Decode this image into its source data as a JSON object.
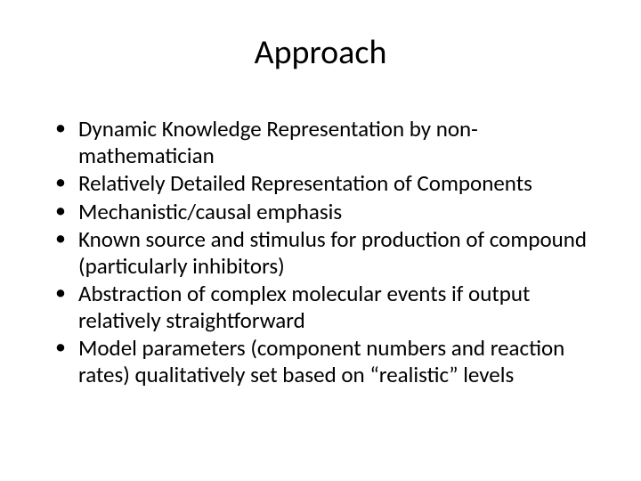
{
  "slide": {
    "title": "Approach",
    "title_fontsize": 38,
    "title_align": "center",
    "background_color": "#ffffff",
    "text_color": "#000000",
    "bullet_fontsize": 25,
    "font_family": "Calibri",
    "bullets": [
      "Dynamic Knowledge Representation by non-mathematician",
      "Relatively Detailed Representation of Components",
      "Mechanistic/causal emphasis",
      "Known source and stimulus for production of compound (particularly inhibitors)",
      "Abstraction of complex molecular events if output relatively straightforward",
      "Model parameters (component numbers and reaction rates) qualitatively set based on “realistic” levels"
    ]
  }
}
